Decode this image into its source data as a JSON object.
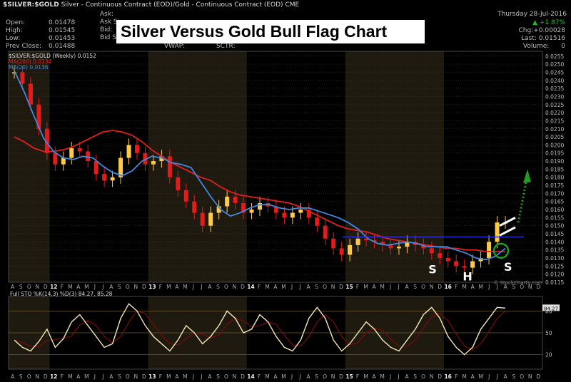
{
  "header": {
    "symbol_line": "$SILVER:$GOLD",
    "description": "Silver - Continuous Contract (EOD)/Gold - Continuous Contract (EOD)",
    "exchange": "CME",
    "date": "Thursday 28-Jul-2016",
    "change_pct": "+1.87%",
    "chg": "Chg:+0.00028",
    "last": "Last: 0.01516",
    "volume": "Volume:",
    "volume_value": "0",
    "stats": [
      {
        "label": "Open:",
        "value": "0.01478"
      },
      {
        "label": "High:",
        "value": "0.01545"
      },
      {
        "label": "Low:",
        "value": "0.01453"
      },
      {
        "label": "Prev Close:",
        "value": "0.01488"
      }
    ],
    "mid_labels": [
      "Ask:",
      "Ask Si",
      "Bid:",
      "Bid Size:"
    ],
    "vwap": "VWAP:",
    "sctr": "SCTR:",
    "watermark": "© StockCharts.com"
  },
  "overlay_title": "Silver Versus Gold Bull Flag Chart",
  "price_legend": {
    "symbol": "$SILVER:$GOLD (Weekly) 0.0152",
    "ma200": "MA(200) 0.0134",
    "ma20": "MA(20) 0.0136"
  },
  "stoch_legend": "Full STO %K(14,3) %D(3) 84.27, 85.28",
  "annotations": {
    "s_left": "S",
    "head": "H",
    "s_right": "S"
  },
  "colors": {
    "background": "#000000",
    "candle_up": "#ffc94a",
    "candle_down": "#e21b1b",
    "ma200": "#e02020",
    "ma20": "#3d8ae0",
    "neckline": "#2f2fd2",
    "arrow": "#1f9e1f",
    "circle": "#1f9e1f",
    "stoch_k": "#f5e6b8",
    "stoch_d": "#7a0a0a",
    "year_band": "#1f1a10",
    "grid": "#3a3a3a"
  },
  "chart_data": {
    "type": "line",
    "title": "Silver Versus Gold Bull Flag Chart",
    "ylabel": "$SILVER:$GOLD",
    "y_ticks": [
      "0.0115",
      "0.0120",
      "0.0125",
      "0.0130",
      "0.0135",
      "0.0140",
      "0.0145",
      "0.0150",
      "0.0155",
      "0.0160",
      "0.0165",
      "0.0170",
      "0.0175",
      "0.0180",
      "0.0185",
      "0.0190",
      "0.0195",
      "0.0200",
      "0.0205",
      "0.0210",
      "0.0215",
      "0.0220",
      "0.0225",
      "0.0230",
      "0.0235",
      "0.0240",
      "0.0245",
      "0.0250",
      "0.0255"
    ],
    "ylim": [
      0.0115,
      0.0258
    ],
    "x_labels": [
      "A",
      "S",
      "O",
      "N",
      "D",
      "12",
      "F",
      "M",
      "A",
      "M",
      "J",
      "J",
      "A",
      "S",
      "O",
      "N",
      "D",
      "13",
      "F",
      "M",
      "A",
      "M",
      "J",
      "J",
      "A",
      "S",
      "O",
      "N",
      "D",
      "14",
      "F",
      "M",
      "A",
      "M",
      "J",
      "J",
      "A",
      "S",
      "O",
      "N",
      "D",
      "15",
      "F",
      "M",
      "A",
      "M",
      "J",
      "J",
      "A",
      "S",
      "O",
      "N",
      "D",
      "16",
      "F",
      "M",
      "A",
      "M",
      "J",
      "J",
      "A",
      "S",
      "O",
      "N",
      "D"
    ],
    "x_years_bold": [
      "12",
      "13",
      "14",
      "15",
      "16"
    ],
    "series": [
      {
        "name": "$SILVER:$GOLD (Weekly)",
        "values": [
          0.0245,
          0.0238,
          0.0225,
          0.021,
          0.0195,
          0.0188,
          0.0192,
          0.0198,
          0.0196,
          0.019,
          0.0182,
          0.0178,
          0.018,
          0.0192,
          0.02,
          0.0195,
          0.0188,
          0.019,
          0.0193,
          0.018,
          0.0172,
          0.0165,
          0.0158,
          0.015,
          0.0158,
          0.0162,
          0.0168,
          0.0164,
          0.0158,
          0.016,
          0.0164,
          0.0162,
          0.0158,
          0.0155,
          0.0158,
          0.016,
          0.0155,
          0.015,
          0.0142,
          0.0136,
          0.0132,
          0.0138,
          0.0142,
          0.0141,
          0.014,
          0.0138,
          0.0136,
          0.0137,
          0.014,
          0.0138,
          0.0136,
          0.0133,
          0.013,
          0.0128,
          0.0125,
          0.0124,
          0.0128,
          0.013,
          0.014,
          0.0152,
          0.0152
        ]
      },
      {
        "name": "MA(200)",
        "values": [
          0.0205,
          0.0202,
          0.0198,
          0.0196,
          0.0196,
          0.0197,
          0.0199,
          0.0202,
          0.0205,
          0.0208,
          0.0209,
          0.0208,
          0.0206,
          0.0202,
          0.0197,
          0.0193,
          0.0189,
          0.0186,
          0.0183,
          0.018,
          0.0178,
          0.0174,
          0.0171,
          0.0169,
          0.0168,
          0.0167,
          0.0166,
          0.0165,
          0.0164,
          0.0162,
          0.0159,
          0.0156,
          0.0153,
          0.015,
          0.0148,
          0.0147,
          0.0146,
          0.0144,
          0.0142,
          0.0141,
          0.014,
          0.0139,
          0.0138,
          0.0137,
          0.0136,
          0.0136,
          0.0135,
          0.0135,
          0.0134,
          0.0134,
          0.0134
        ]
      },
      {
        "name": "MA(20)",
        "values": [
          0.0246,
          0.0233,
          0.0218,
          0.0204,
          0.0196,
          0.0192,
          0.0191,
          0.0193,
          0.0192,
          0.0187,
          0.0183,
          0.0181,
          0.0184,
          0.019,
          0.0193,
          0.0192,
          0.0189,
          0.0188,
          0.0186,
          0.0177,
          0.0168,
          0.016,
          0.0156,
          0.0158,
          0.0161,
          0.0163,
          0.0163,
          0.0161,
          0.016,
          0.0161,
          0.0161,
          0.0159,
          0.0157,
          0.0155,
          0.0152,
          0.0148,
          0.0142,
          0.0139,
          0.0138,
          0.0139,
          0.014,
          0.0139,
          0.0137,
          0.0137,
          0.0137,
          0.0135,
          0.0133,
          0.013,
          0.0129,
          0.0131,
          0.0136
        ]
      },
      {
        "name": "Full STO %K(14,3)",
        "values": [
          40,
          30,
          25,
          38,
          55,
          30,
          42,
          65,
          75,
          60,
          45,
          30,
          35,
          70,
          90,
          80,
          60,
          45,
          35,
          25,
          40,
          60,
          50,
          35,
          45,
          60,
          80,
          70,
          50,
          55,
          75,
          65,
          45,
          30,
          25,
          40,
          70,
          85,
          70,
          40,
          25,
          35,
          50,
          65,
          55,
          40,
          30,
          25,
          40,
          55,
          75,
          85,
          70,
          45,
          30,
          20,
          30,
          55,
          70,
          85,
          84
        ]
      }
    ],
    "y2_ticks": [
      "20",
      "50",
      "80"
    ],
    "y2_current": "84.27",
    "neckline": 0.0143
  }
}
